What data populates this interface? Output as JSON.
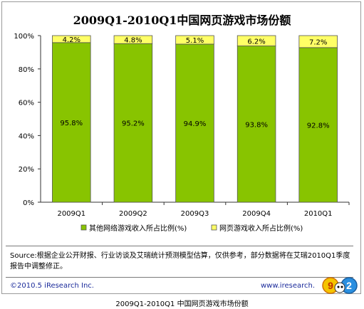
{
  "title": "2009Q1-2010Q1中国网页游戏市场份额",
  "source_text": "Source:根据企业公开财报、行业访谈及艾瑞统计预测模型估算，仅供参考，部分数据将在艾瑞2010Q1季度报告中调整修正。",
  "copyright": "©2010.5 iResearch Inc.",
  "website": "www.iresearch.",
  "logo_text": "9",
  "logo_text_2": "2",
  "caption": "2009Q1-2010Q1 中国网页游戏市场份额",
  "colors": {
    "other_series": "#88c400",
    "webgame_series": "#ffff66",
    "bar_border": "#555555"
  },
  "chart_data": {
    "type": "bar",
    "stacked": true,
    "title": "2009Q1-2010Q1中国网页游戏市场份额",
    "categories": [
      "2009Q1",
      "2009Q2",
      "2009Q3",
      "2009Q4",
      "2010Q1"
    ],
    "series": [
      {
        "name": "其他网络游戏收入所占比例(%)",
        "values": [
          95.8,
          95.2,
          94.9,
          93.8,
          92.8
        ],
        "labels": [
          "95.8%",
          "95.2%",
          "94.9%",
          "93.8%",
          "92.8%"
        ]
      },
      {
        "name": "网页游戏收入所占比例(%)",
        "values": [
          4.2,
          4.8,
          5.1,
          6.2,
          7.2
        ],
        "labels": [
          "4.2%",
          "4.8%",
          "5.1%",
          "6.2%",
          "7.2%"
        ]
      }
    ],
    "ylim": [
      0,
      100
    ],
    "yticks": [
      "0%",
      "20%",
      "40%",
      "60%",
      "80%",
      "100%"
    ],
    "ytick_values": [
      0,
      20,
      40,
      60,
      80,
      100
    ],
    "legend": [
      "其他网络游戏收入所占比例(%)",
      "网页游戏收入所占比例(%)"
    ],
    "legend_position": "bottom",
    "grid": false
  }
}
